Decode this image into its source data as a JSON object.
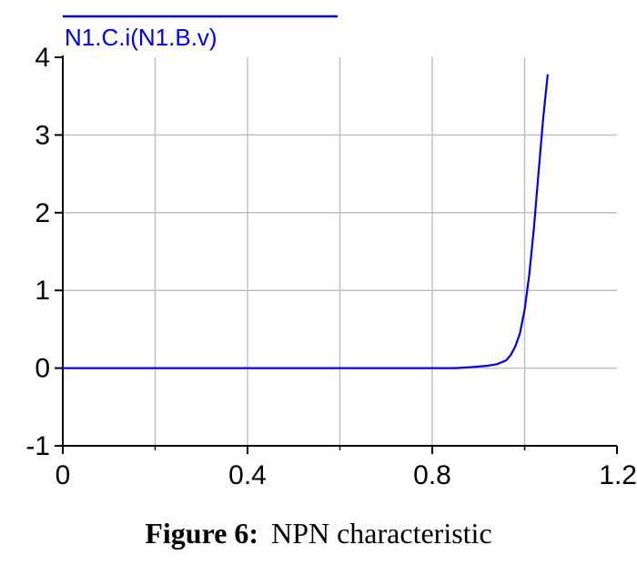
{
  "chart_data": {
    "type": "line",
    "title": "",
    "xlabel": "",
    "ylabel": "",
    "xlim": [
      0,
      1.2
    ],
    "ylim": [
      -1,
      4
    ],
    "xticks": [
      0,
      0.4,
      0.8,
      1.2
    ],
    "xtick_labels": [
      "0",
      "0.4",
      "0.8",
      "1.2"
    ],
    "yticks": [
      -1,
      0,
      1,
      2,
      3,
      4
    ],
    "ytick_labels": [
      "-1",
      "0",
      "1",
      "2",
      "3",
      "4"
    ],
    "x_gridlines": [
      0.2,
      0.4,
      0.6,
      0.8,
      1.0
    ],
    "y_gridlines": [
      1,
      2,
      3
    ],
    "grid": true,
    "legend_position": "top-left",
    "series": [
      {
        "name": "N1.C.i(N1.B.v)",
        "color": "#0000ee",
        "x": [
          0,
          0.85,
          0.88,
          0.9,
          0.92,
          0.94,
          0.96,
          0.97,
          0.98,
          0.99,
          1.0,
          1.01,
          1.02,
          1.03,
          1.04,
          1.05
        ],
        "y": [
          0,
          0,
          0.01,
          0.02,
          0.03,
          0.05,
          0.1,
          0.17,
          0.28,
          0.45,
          0.75,
          1.2,
          1.8,
          2.5,
          3.2,
          3.78
        ]
      }
    ]
  },
  "caption": {
    "label": "Figure 6:",
    "text": "NPN characteristic"
  }
}
